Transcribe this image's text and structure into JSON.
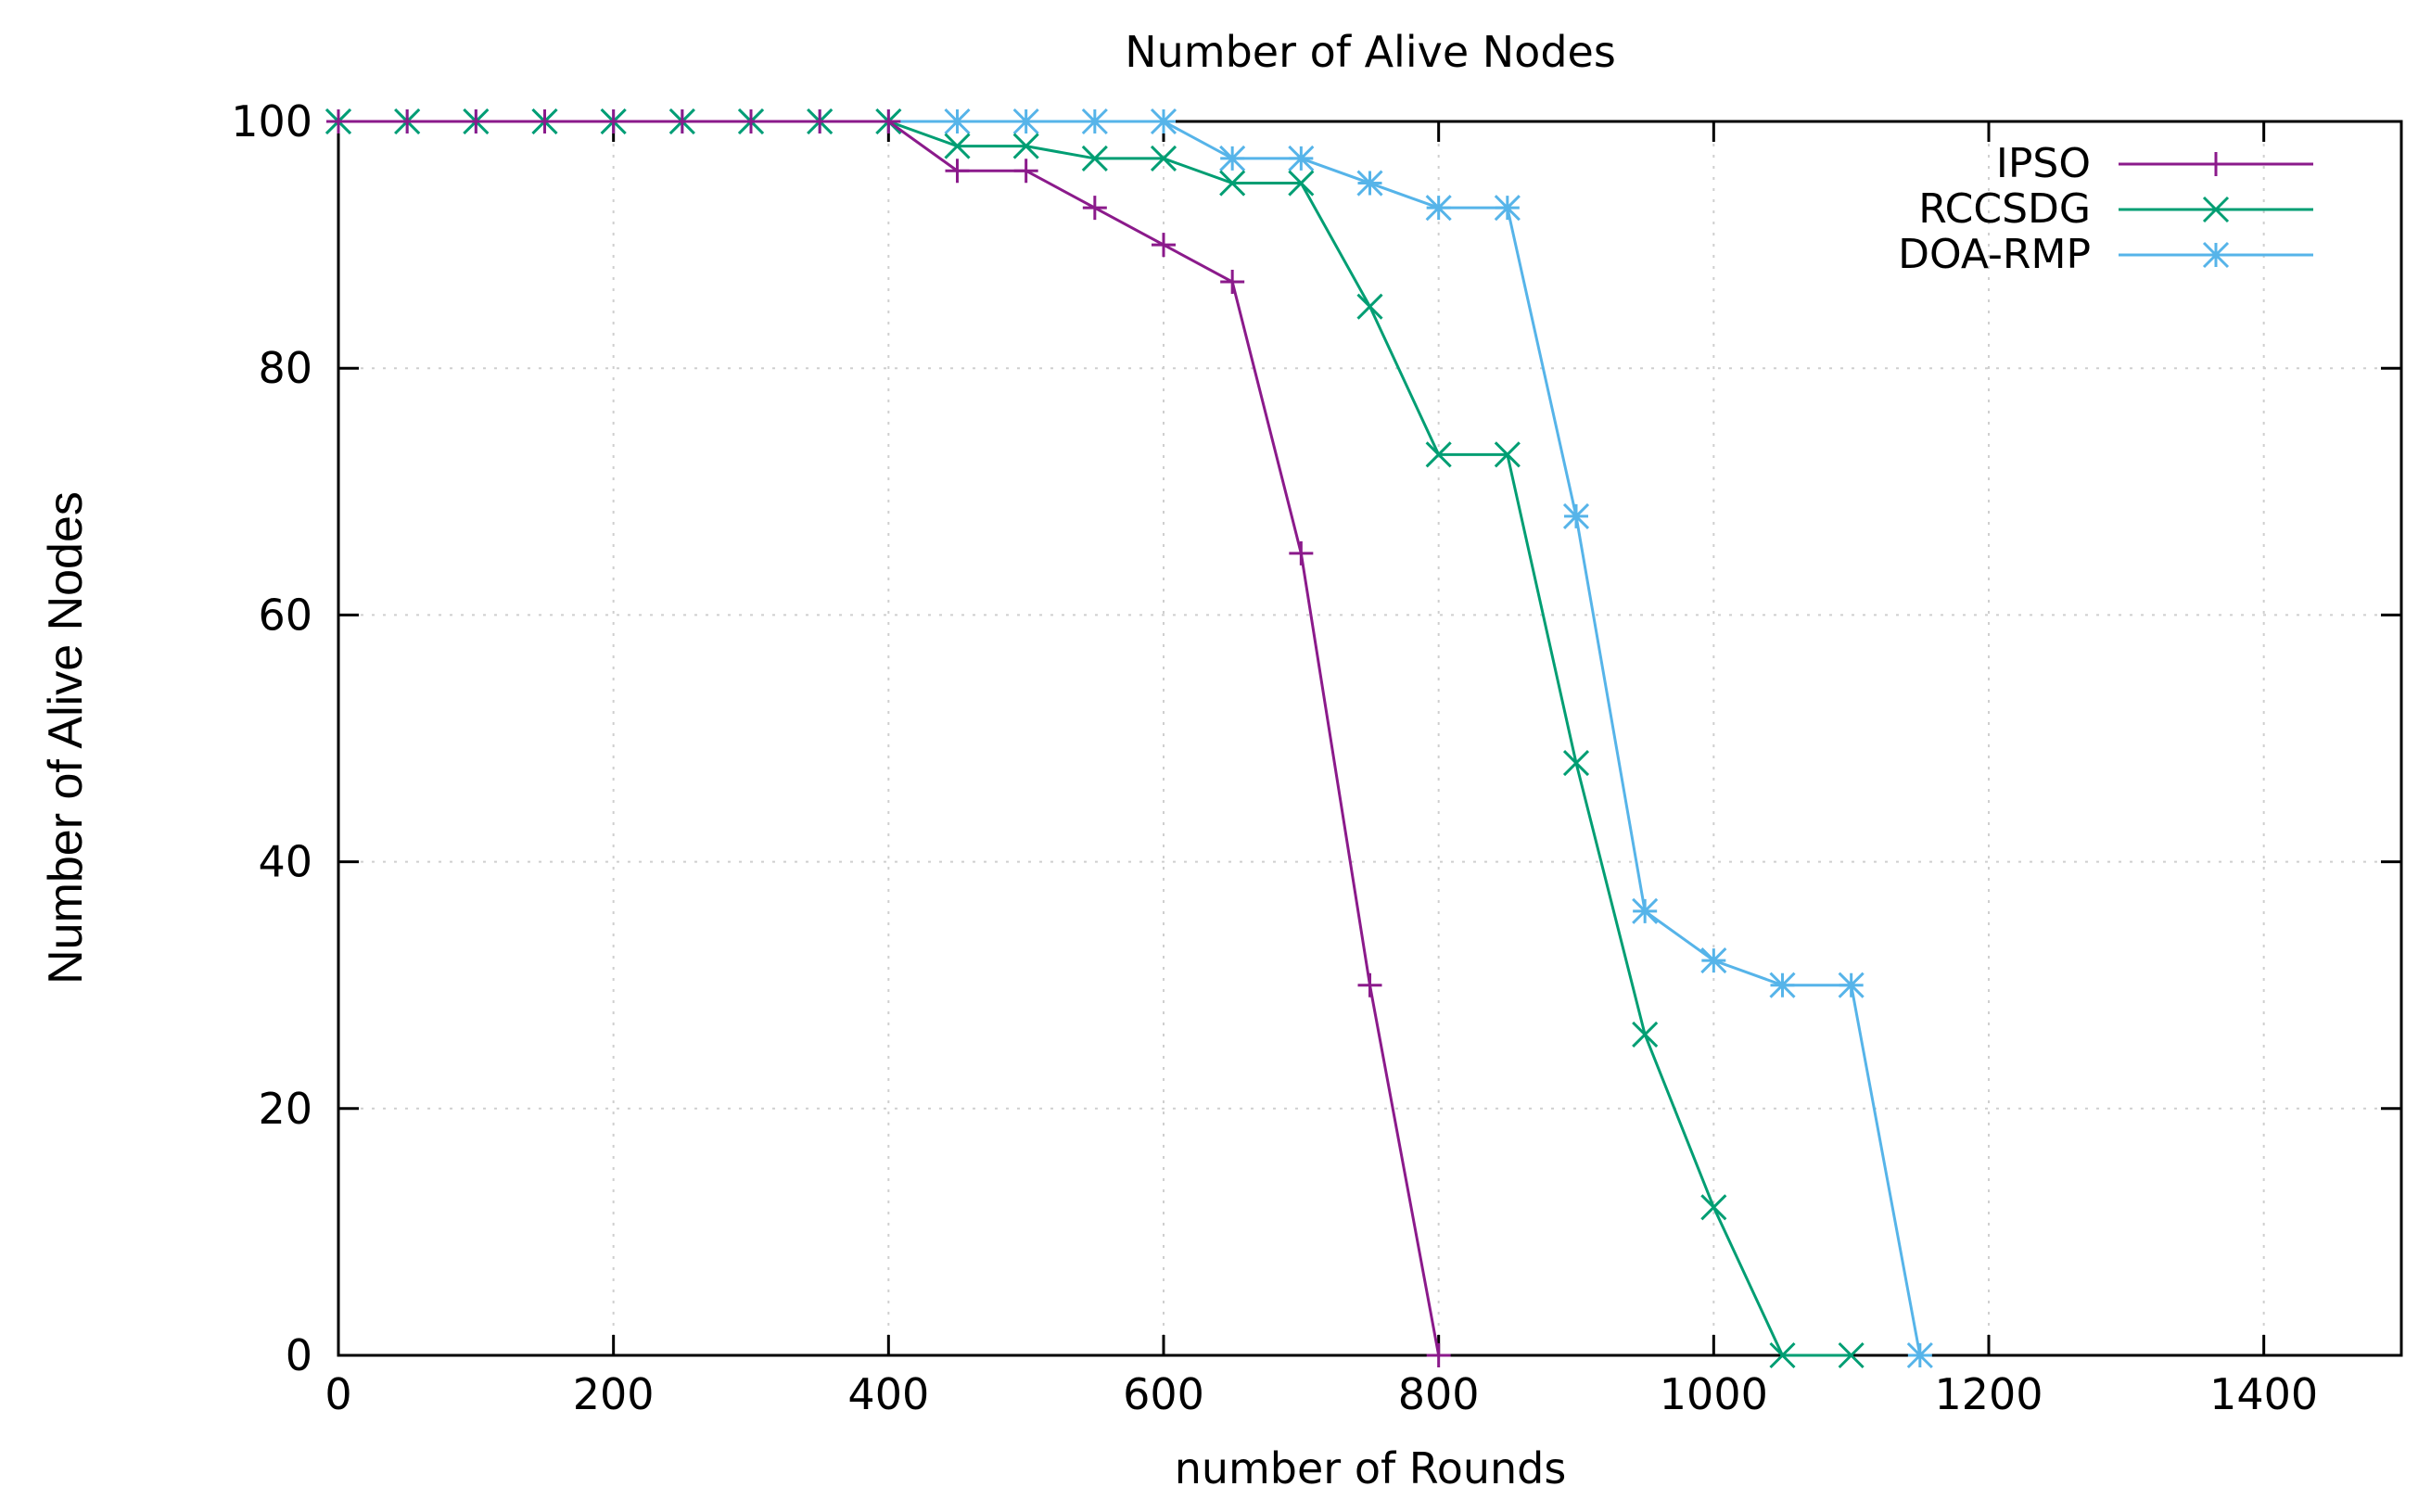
{
  "chart_data": {
    "type": "line",
    "title": "Number of Alive Nodes",
    "xlabel": "number of Rounds",
    "ylabel": "Number of Alive Nodes",
    "xlim": [
      0,
      1500
    ],
    "ylim": [
      0,
      100
    ],
    "xticks": [
      0,
      200,
      400,
      600,
      800,
      1000,
      1200,
      1400
    ],
    "yticks": [
      0,
      20,
      40,
      60,
      80,
      100
    ],
    "grid": true,
    "legend_position": "top-right",
    "series": [
      {
        "name": "IPSO",
        "color": "#8b1a8b",
        "marker": "plus",
        "x": [
          0,
          50,
          100,
          150,
          200,
          250,
          300,
          350,
          400,
          450,
          500,
          550,
          600,
          650,
          700,
          750,
          800
        ],
        "y": [
          100,
          100,
          100,
          100,
          100,
          100,
          100,
          100,
          100,
          96,
          96,
          93,
          90,
          87,
          65,
          30,
          0
        ]
      },
      {
        "name": "RCCSDG",
        "color": "#009e73",
        "marker": "cross",
        "x": [
          0,
          50,
          100,
          150,
          200,
          250,
          300,
          350,
          400,
          450,
          500,
          550,
          600,
          650,
          700,
          750,
          800,
          850,
          900,
          950,
          1000,
          1050,
          1100
        ],
        "y": [
          100,
          100,
          100,
          100,
          100,
          100,
          100,
          100,
          100,
          98,
          98,
          97,
          97,
          95,
          95,
          85,
          73,
          73,
          48,
          26,
          12,
          0,
          0
        ]
      },
      {
        "name": "DOA-RMP",
        "color": "#56b4e9",
        "marker": "star",
        "x": [
          0,
          50,
          100,
          150,
          200,
          250,
          300,
          350,
          400,
          450,
          500,
          550,
          600,
          650,
          700,
          750,
          800,
          850,
          900,
          950,
          1000,
          1050,
          1100,
          1150
        ],
        "y": [
          100,
          100,
          100,
          100,
          100,
          100,
          100,
          100,
          100,
          100,
          100,
          100,
          100,
          97,
          97,
          95,
          93,
          93,
          68,
          36,
          32,
          30,
          30,
          0
        ]
      }
    ]
  }
}
